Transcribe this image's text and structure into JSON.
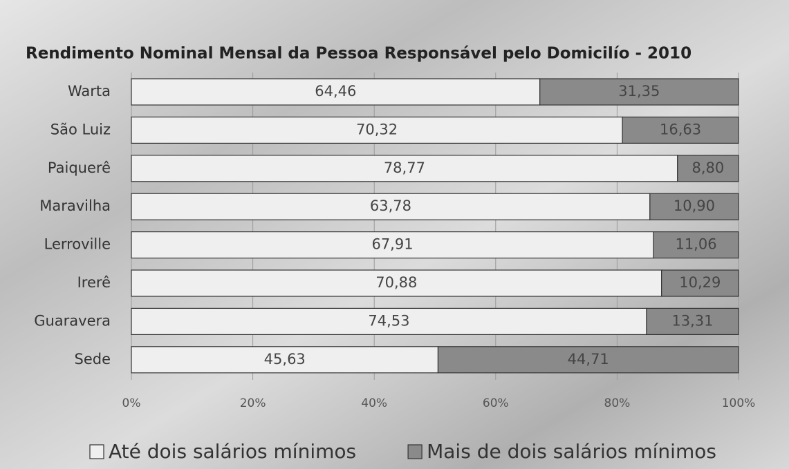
{
  "chart_data": {
    "type": "bar",
    "orientation": "horizontal",
    "stacked": "percent",
    "title": "Rendimento Nominal Mensal da Pessoa Responsável pelo Domicilío - 2010",
    "categories": [
      "Warta",
      "São Luiz",
      "Paiquerê",
      "Maravilha",
      "Lerroville",
      "Irerê",
      "Guaravera",
      "Sede"
    ],
    "series": [
      {
        "name": "Até dois salários mínimos",
        "color": "#efefef",
        "values": [
          64.46,
          70.32,
          78.77,
          63.78,
          67.91,
          70.88,
          74.53,
          45.63
        ],
        "value_labels": [
          "64,46",
          "70,32",
          "78,77",
          "63,78",
          "67,91",
          "70,88",
          "74,53",
          "45,63"
        ]
      },
      {
        "name": "Mais de dois salários mínimos",
        "color": "#8a8a8a",
        "values": [
          31.35,
          16.63,
          8.8,
          10.9,
          11.06,
          10.29,
          13.31,
          44.71
        ],
        "value_labels": [
          "31,35",
          "16,63",
          "8,80",
          "10,90",
          "11,06",
          "10,29",
          "13,31",
          "44,71"
        ]
      }
    ],
    "xlim": [
      0,
      100
    ],
    "xticks": [
      {
        "value": 0,
        "label": "0%"
      },
      {
        "value": 20,
        "label": "20%"
      },
      {
        "value": 40,
        "label": "40%"
      },
      {
        "value": 60,
        "label": "60%"
      },
      {
        "value": 80,
        "label": "80%"
      },
      {
        "value": 100,
        "label": "100%"
      }
    ],
    "grid": true,
    "legend": "bottom"
  }
}
